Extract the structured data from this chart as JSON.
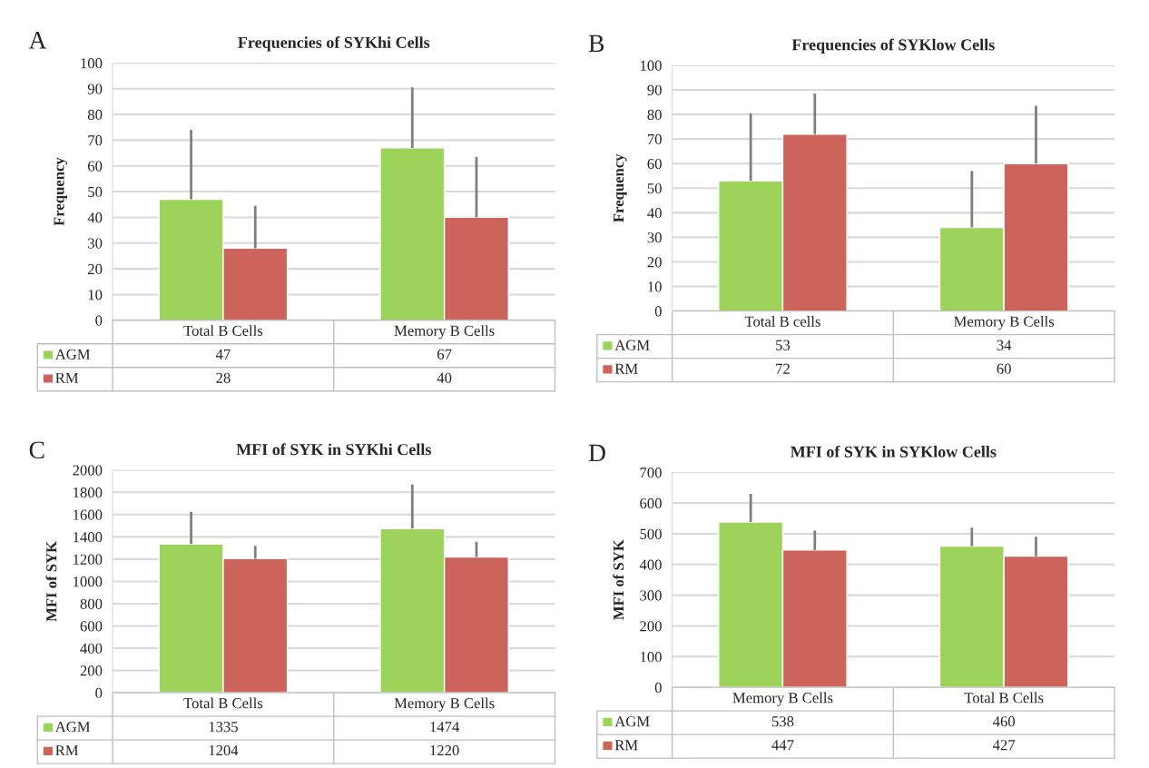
{
  "chart_data": [
    {
      "type": "bar",
      "title": "Frequencies of SYKhi Cells",
      "ylabel": "Frequency",
      "annotations": [
        "A"
      ],
      "categories": [
        "Total B Cells",
        "Memory B Cells"
      ],
      "series": [
        {
          "name": "AGM",
          "color": "#9dd35b",
          "values": [
            47,
            67
          ],
          "errors": [
            [
              47,
              74
            ],
            [
              67,
              90.5
            ]
          ]
        },
        {
          "name": "RM",
          "color": "#cd645c",
          "values": [
            28,
            40
          ],
          "errors": [
            [
              28,
              44.5
            ],
            [
              40,
              63.5
            ]
          ]
        }
      ],
      "ylim": [
        0,
        100
      ],
      "yticks": [
        0,
        10,
        20,
        30,
        40,
        50,
        60,
        70,
        80,
        90,
        100
      ],
      "grid": "y",
      "legend": "bottom",
      "data_labels": true
    },
    {
      "type": "bar",
      "title": "Frequencies of SYKlow Cells",
      "ylabel": "Frequency",
      "annotations": [
        "B"
      ],
      "categories": [
        "Total B cells",
        "Memory B Cells"
      ],
      "series": [
        {
          "name": "AGM",
          "color": "#9dd35b",
          "values": [
            53,
            34
          ],
          "errors": [
            [
              53,
              80.5
            ],
            [
              34,
              57
            ]
          ]
        },
        {
          "name": "RM",
          "color": "#cd645c",
          "values": [
            72,
            60
          ],
          "errors": [
            [
              72,
              88.5
            ],
            [
              60,
              83.5
            ]
          ]
        }
      ],
      "ylim": [
        0,
        100
      ],
      "yticks": [
        0,
        10,
        20,
        30,
        40,
        50,
        60,
        70,
        80,
        90,
        100
      ],
      "grid": "y",
      "legend": "bottom",
      "data_labels": true
    },
    {
      "type": "bar",
      "title": "MFI of SYK in SYKhi Cells",
      "ylabel": "MFI of SYK",
      "annotations": [
        "C"
      ],
      "categories": [
        "Total B Cells",
        "Memory B Cells"
      ],
      "series": [
        {
          "name": "AGM",
          "color": "#9dd35b",
          "values": [
            1335,
            1474
          ],
          "errors": [
            [
              1335,
              1625
            ],
            [
              1474,
              1870
            ]
          ]
        },
        {
          "name": "RM",
          "color": "#cd645c",
          "values": [
            1204,
            1220
          ],
          "errors": [
            [
              1204,
              1320
            ],
            [
              1220,
              1355
            ]
          ]
        }
      ],
      "ylim": [
        0,
        2000
      ],
      "yticks": [
        0,
        200,
        400,
        600,
        800,
        1000,
        1200,
        1400,
        1600,
        1800,
        2000
      ],
      "grid": "y",
      "legend": "bottom",
      "data_labels": true
    },
    {
      "type": "bar",
      "title": "MFI of SYK in SYKlow Cells",
      "ylabel": "MFI of SYK",
      "annotations": [
        "D"
      ],
      "categories": [
        "Memory B Cells",
        "Total B Cells"
      ],
      "series": [
        {
          "name": "AGM",
          "color": "#9dd35b",
          "values": [
            538,
            460
          ],
          "errors": [
            [
              538,
              630
            ],
            [
              460,
              520
            ]
          ]
        },
        {
          "name": "RM",
          "color": "#cd645c",
          "values": [
            447,
            427
          ],
          "errors": [
            [
              447,
              510
            ],
            [
              427,
              490
            ]
          ]
        }
      ],
      "ylim": [
        0,
        700
      ],
      "yticks": [
        0,
        100,
        200,
        300,
        400,
        500,
        600,
        700
      ],
      "grid": "y",
      "legend": "bottom",
      "data_labels": true
    }
  ]
}
